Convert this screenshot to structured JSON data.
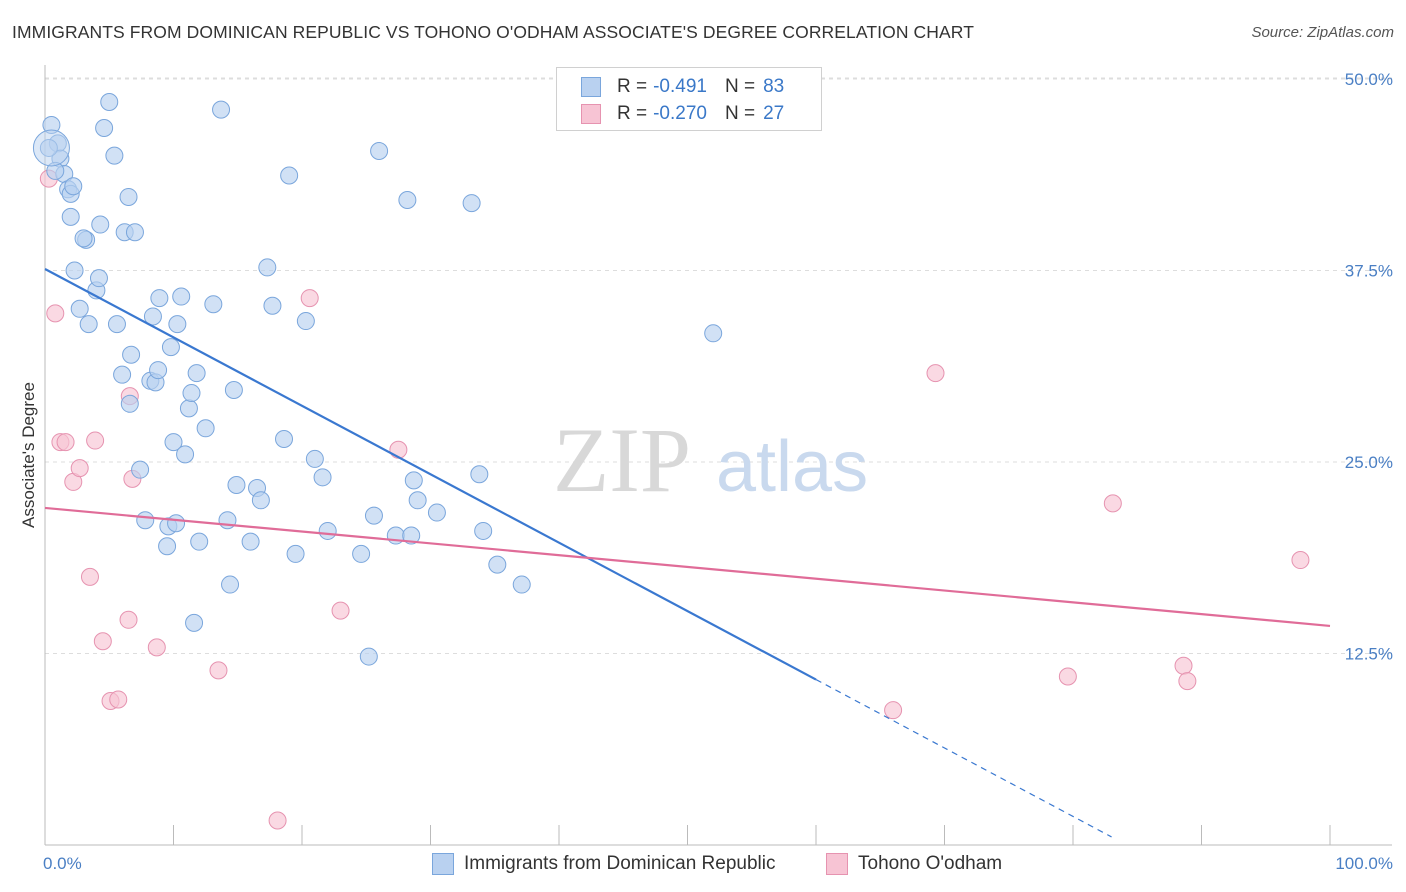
{
  "title": "IMMIGRANTS FROM DOMINICAN REPUBLIC VS TOHONO O'ODHAM ASSOCIATE'S DEGREE CORRELATION CHART",
  "source": "Source: ZipAtlas.com",
  "watermark": {
    "zip": "ZIP",
    "atlas": "atlas"
  },
  "legend": {
    "rows": [
      {
        "r_label": "R =",
        "r_value": "-0.491",
        "n_label": "N =",
        "n_value": "83"
      },
      {
        "r_label": "R =",
        "r_value": "-0.270",
        "n_label": "N =",
        "n_value": "27"
      }
    ]
  },
  "bottom_legend": {
    "series1": "Immigrants from Dominican Republic",
    "series2": "Tohono O'odham"
  },
  "colors": {
    "blue_fill": "#b9d1f0",
    "blue_stroke": "#7aa6dc",
    "blue_line": "#3a78d0",
    "pink_fill": "#f7c4d4",
    "pink_stroke": "#e693b0",
    "pink_line": "#e06c98",
    "tick_text": "#4a7fc4",
    "grid": "#dddddd"
  },
  "chart_data": {
    "type": "scatter",
    "title": "IMMIGRANTS FROM DOMINICAN REPUBLIC VS TOHONO O'ODHAM ASSOCIATE'S DEGREE CORRELATION CHART",
    "xlabel": "",
    "ylabel": "Associate's Degree",
    "xlim": [
      0,
      100
    ],
    "ylim": [
      0,
      52
    ],
    "x_tick_labels": [
      "0.0%",
      "100.0%"
    ],
    "y_ticks": [
      12.5,
      25.0,
      37.5,
      50.0
    ],
    "y_tick_labels": [
      "12.5%",
      "25.0%",
      "37.5%",
      "50.0%"
    ],
    "grid": true,
    "series": [
      {
        "name": "Immigrants from Dominican Republic",
        "r": -0.491,
        "n": 83,
        "trend": {
          "x0": 0,
          "y0": 37.6,
          "x1": 60,
          "y1": 10.8,
          "dashed_to_x": 83
        },
        "points": [
          [
            0.5,
            47.0
          ],
          [
            1.0,
            45.8
          ],
          [
            1.2,
            44.8
          ],
          [
            1.5,
            43.8
          ],
          [
            1.8,
            42.8
          ],
          [
            2.0,
            42.5
          ],
          [
            2.2,
            43.0
          ],
          [
            2.0,
            41.0
          ],
          [
            2.3,
            37.5
          ],
          [
            2.7,
            35.0
          ],
          [
            3.2,
            39.5
          ],
          [
            3.0,
            39.6
          ],
          [
            3.4,
            34.0
          ],
          [
            4.0,
            36.2
          ],
          [
            4.2,
            37.0
          ],
          [
            4.3,
            40.5
          ],
          [
            4.6,
            46.8
          ],
          [
            5.0,
            48.5
          ],
          [
            5.4,
            45.0
          ],
          [
            5.6,
            34.0
          ],
          [
            6.0,
            30.7
          ],
          [
            6.2,
            40.0
          ],
          [
            6.5,
            42.3
          ],
          [
            6.6,
            28.8
          ],
          [
            6.7,
            32.0
          ],
          [
            7.0,
            40.0
          ],
          [
            7.4,
            24.5
          ],
          [
            7.8,
            21.2
          ],
          [
            8.2,
            30.3
          ],
          [
            8.4,
            34.5
          ],
          [
            8.6,
            30.2
          ],
          [
            8.8,
            31.0
          ],
          [
            8.9,
            35.7
          ],
          [
            9.5,
            19.5
          ],
          [
            9.6,
            20.8
          ],
          [
            9.8,
            32.5
          ],
          [
            10.0,
            26.3
          ],
          [
            10.3,
            34.0
          ],
          [
            10.2,
            21.0
          ],
          [
            10.6,
            35.8
          ],
          [
            10.9,
            25.5
          ],
          [
            11.2,
            28.5
          ],
          [
            11.4,
            29.5
          ],
          [
            11.6,
            14.5
          ],
          [
            11.8,
            30.8
          ],
          [
            12.0,
            19.8
          ],
          [
            12.5,
            27.2
          ],
          [
            13.1,
            35.3
          ],
          [
            13.7,
            48.0
          ],
          [
            14.2,
            21.2
          ],
          [
            14.4,
            17.0
          ],
          [
            14.7,
            29.7
          ],
          [
            14.9,
            23.5
          ],
          [
            16.0,
            19.8
          ],
          [
            16.5,
            23.3
          ],
          [
            16.8,
            22.5
          ],
          [
            17.3,
            37.7
          ],
          [
            17.7,
            35.2
          ],
          [
            18.6,
            26.5
          ],
          [
            19.0,
            43.7
          ],
          [
            19.5,
            19.0
          ],
          [
            20.3,
            34.2
          ],
          [
            21.0,
            25.2
          ],
          [
            21.6,
            24.0
          ],
          [
            22.0,
            20.5
          ],
          [
            24.6,
            19.0
          ],
          [
            25.2,
            12.3
          ],
          [
            25.6,
            21.5
          ],
          [
            26.0,
            45.3
          ],
          [
            27.3,
            20.2
          ],
          [
            28.2,
            42.1
          ],
          [
            28.5,
            20.2
          ],
          [
            28.7,
            23.8
          ],
          [
            29.0,
            22.5
          ],
          [
            30.5,
            21.7
          ],
          [
            33.2,
            41.9
          ],
          [
            33.8,
            24.2
          ],
          [
            34.1,
            20.5
          ],
          [
            35.2,
            18.3
          ],
          [
            37.1,
            17.0
          ],
          [
            52.0,
            33.4
          ],
          [
            0.3,
            45.5
          ],
          [
            0.8,
            44.0
          ]
        ]
      },
      {
        "name": "Tohono O'odham",
        "r": -0.27,
        "n": 27,
        "trend": {
          "x0": 0,
          "y0": 22.0,
          "x1": 100,
          "y1": 14.3
        },
        "points": [
          [
            0.3,
            43.5
          ],
          [
            0.8,
            34.7
          ],
          [
            1.2,
            26.3
          ],
          [
            1.6,
            26.3
          ],
          [
            2.2,
            23.7
          ],
          [
            2.7,
            24.6
          ],
          [
            3.5,
            17.5
          ],
          [
            3.9,
            26.4
          ],
          [
            4.5,
            13.3
          ],
          [
            5.1,
            9.4
          ],
          [
            5.7,
            9.5
          ],
          [
            6.5,
            14.7
          ],
          [
            6.6,
            29.3
          ],
          [
            6.8,
            23.9
          ],
          [
            8.7,
            12.9
          ],
          [
            13.5,
            11.4
          ],
          [
            18.1,
            1.6
          ],
          [
            20.6,
            35.7
          ],
          [
            23.0,
            15.3
          ],
          [
            27.5,
            25.8
          ],
          [
            66.0,
            8.8
          ],
          [
            69.3,
            30.8
          ],
          [
            79.6,
            11.0
          ],
          [
            83.1,
            22.3
          ],
          [
            88.6,
            11.7
          ],
          [
            88.9,
            10.7
          ],
          [
            97.7,
            18.6
          ]
        ]
      }
    ]
  }
}
